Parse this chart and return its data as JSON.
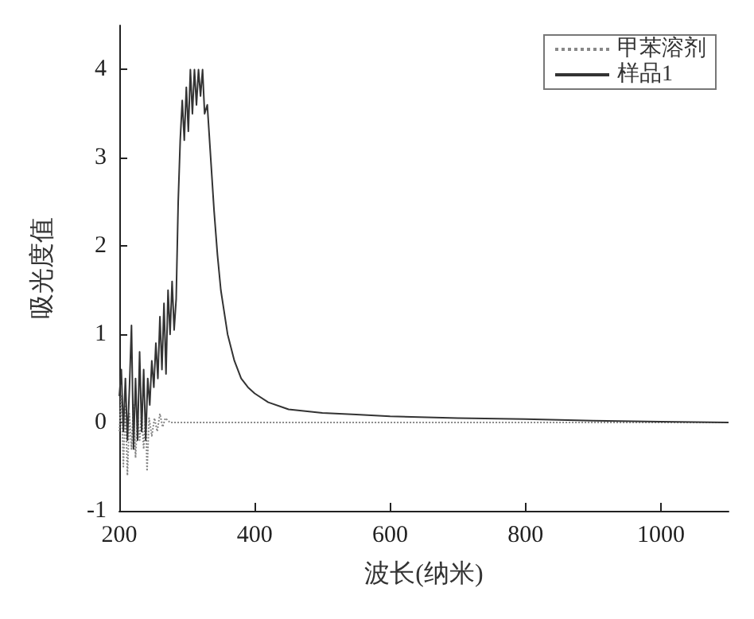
{
  "chart_data": {
    "type": "line",
    "xlabel": "波长(纳米)",
    "ylabel": "吸光度值",
    "xlim": [
      200,
      1100
    ],
    "xticks": [
      200,
      400,
      600,
      800,
      1000
    ],
    "ylim": [
      -1,
      4.5
    ],
    "yticks": [
      -1,
      0,
      1,
      2,
      3,
      4
    ],
    "grid": false,
    "legend": "top right",
    "marker": "none",
    "series": [
      {
        "name": "甲苯溶剂",
        "color": "#888888",
        "line_style": "dotted",
        "x": [
          200,
          203,
          206,
          209,
          212,
          215,
          218,
          221,
          224,
          227,
          230,
          233,
          236,
          239,
          241,
          244,
          248,
          252,
          256,
          260,
          264,
          268,
          275,
          400,
          600,
          800,
          1000,
          1100
        ],
        "values": [
          -0.1,
          0.3,
          -0.5,
          0.2,
          -0.6,
          0.1,
          -0.3,
          0.2,
          -0.4,
          0.1,
          -0.2,
          0.1,
          -0.3,
          0.1,
          -0.55,
          0.05,
          -0.15,
          0.05,
          -0.1,
          0.1,
          -0.05,
          0.05,
          0,
          0,
          0,
          0,
          0,
          0
        ]
      },
      {
        "name": "样品1",
        "color": "#333333",
        "line_style": "solid",
        "x": [
          200,
          203,
          206,
          209,
          212,
          215,
          218,
          221,
          224,
          227,
          230,
          233,
          236,
          239,
          242,
          245,
          248,
          251,
          254,
          257,
          260,
          263,
          266,
          269,
          272,
          275,
          278,
          281,
          284,
          287,
          290,
          293,
          296,
          299,
          302,
          305,
          308,
          311,
          314,
          317,
          320,
          323,
          326,
          330,
          335,
          340,
          345,
          350,
          360,
          370,
          380,
          390,
          400,
          420,
          450,
          500,
          550,
          600,
          700,
          800,
          900,
          1000,
          1100
        ],
        "values": [
          0.3,
          0.6,
          -0.1,
          0.5,
          -0.2,
          0.4,
          1.1,
          -0.3,
          0.5,
          -0.2,
          0.8,
          -0.1,
          0.6,
          -0.2,
          0.5,
          0.2,
          0.7,
          0.4,
          0.9,
          0.5,
          1.2,
          0.6,
          1.35,
          0.55,
          1.5,
          1.0,
          1.6,
          1.05,
          1.4,
          2.5,
          3.2,
          3.65,
          3.2,
          3.8,
          3.3,
          4.0,
          3.5,
          4.0,
          3.6,
          4.0,
          3.7,
          4.0,
          3.5,
          3.6,
          3.0,
          2.4,
          1.9,
          1.5,
          1.0,
          0.7,
          0.5,
          0.4,
          0.33,
          0.23,
          0.15,
          0.11,
          0.09,
          0.07,
          0.05,
          0.04,
          0.02,
          0.01,
          0.0
        ]
      }
    ]
  }
}
